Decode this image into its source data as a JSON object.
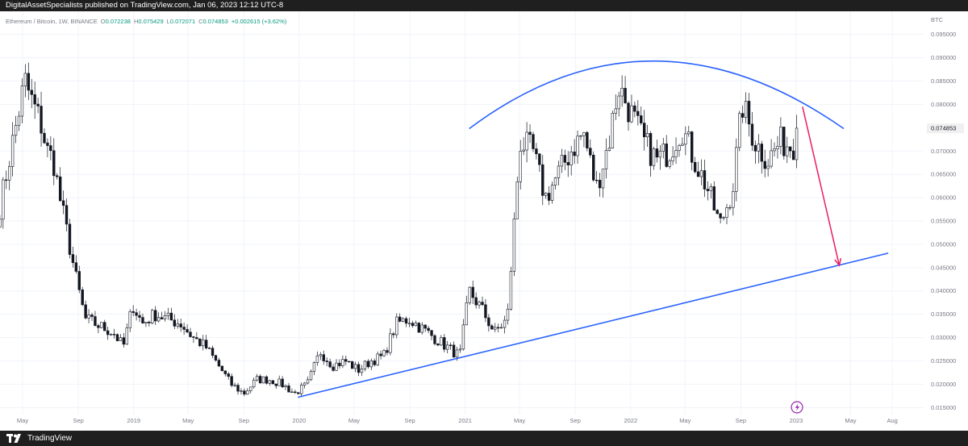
{
  "publish_line": "DigitalAssetSpecialists published on TradingView.com, Jan 06, 2023 12:12 UTC-8",
  "brand": "TradingView",
  "legend": {
    "symbol": "Ethereum / Bitcoin, 1W, BINANCE",
    "o_label": "O",
    "o_value": "0.072238",
    "h_label": "H",
    "h_value": "0.075429",
    "l_label": "L",
    "l_value": "0.072071",
    "c_label": "C",
    "c_value": "0.074853",
    "change": "+0.002615 (+3.62%)"
  },
  "colors": {
    "candle": "#131722",
    "trendline": "#2962ff",
    "arrow": "#e91e63",
    "grid": "#f0f3fa",
    "axis_text": "#787b86",
    "price_label_bg": "#f0f0f0"
  },
  "chart_data": {
    "type": "candlestick",
    "currency_label": "BTC",
    "last_price": "0.074853",
    "ylim": [
      0.0135,
      0.0965
    ],
    "y_ticks": [
      "0.095000",
      "0.090000",
      "0.085000",
      "0.080000",
      "0.070000",
      "0.065000",
      "0.060000",
      "0.055000",
      "0.050000",
      "0.045000",
      "0.040000",
      "0.035000",
      "0.030000",
      "0.025000",
      "0.020000",
      "0.015000"
    ],
    "x_ticks": [
      {
        "label": "May",
        "date": "2018-05-01"
      },
      {
        "label": "Sep",
        "date": "2018-09-01"
      },
      {
        "label": "2019",
        "date": "2019-01-01"
      },
      {
        "label": "May",
        "date": "2019-05-01"
      },
      {
        "label": "Sep",
        "date": "2019-09-01"
      },
      {
        "label": "2020",
        "date": "2020-01-01"
      },
      {
        "label": "May",
        "date": "2020-05-01"
      },
      {
        "label": "Sep",
        "date": "2020-09-01"
      },
      {
        "label": "2021",
        "date": "2021-01-01"
      },
      {
        "label": "May",
        "date": "2021-05-01"
      },
      {
        "label": "Sep",
        "date": "2021-09-01"
      },
      {
        "label": "2022",
        "date": "2022-01-01"
      },
      {
        "label": "May",
        "date": "2022-05-01"
      },
      {
        "label": "Sep",
        "date": "2022-09-01"
      },
      {
        "label": "2023",
        "date": "2023-01-01"
      },
      {
        "label": "May",
        "date": "2023-05-01"
      },
      {
        "label": "Aug",
        "date": "2023-08-01"
      }
    ],
    "price_path": [
      [
        "2018-03-12",
        0.058
      ],
      [
        "2018-04-01",
        0.068
      ],
      [
        "2018-05-06",
        0.085
      ],
      [
        "2018-05-20",
        0.081
      ],
      [
        "2018-06-10",
        0.076
      ],
      [
        "2018-06-24",
        0.07
      ],
      [
        "2018-07-08",
        0.068
      ],
      [
        "2018-07-22",
        0.06
      ],
      [
        "2018-08-12",
        0.05
      ],
      [
        "2018-08-26",
        0.043
      ],
      [
        "2018-09-16",
        0.034
      ],
      [
        "2018-10-07",
        0.033
      ],
      [
        "2018-10-28",
        0.032
      ],
      [
        "2018-11-18",
        0.031
      ],
      [
        "2018-12-09",
        0.028
      ],
      [
        "2018-12-30",
        0.037
      ],
      [
        "2019-01-20",
        0.033
      ],
      [
        "2019-02-17",
        0.035
      ],
      [
        "2019-03-17",
        0.034
      ],
      [
        "2019-04-14",
        0.033
      ],
      [
        "2019-05-12",
        0.03
      ],
      [
        "2019-06-09",
        0.028
      ],
      [
        "2019-07-07",
        0.024
      ],
      [
        "2019-08-04",
        0.02
      ],
      [
        "2019-09-01",
        0.018
      ],
      [
        "2019-09-29",
        0.021
      ],
      [
        "2019-10-27",
        0.021
      ],
      [
        "2019-11-24",
        0.02
      ],
      [
        "2019-12-22",
        0.018
      ],
      [
        "2020-01-19",
        0.02
      ],
      [
        "2020-02-16",
        0.027
      ],
      [
        "2020-03-15",
        0.024
      ],
      [
        "2020-04-12",
        0.025
      ],
      [
        "2020-05-10",
        0.023
      ],
      [
        "2020-06-07",
        0.025
      ],
      [
        "2020-07-05",
        0.026
      ],
      [
        "2020-08-02",
        0.033
      ],
      [
        "2020-08-30",
        0.034
      ],
      [
        "2020-09-27",
        0.032
      ],
      [
        "2020-10-25",
        0.03
      ],
      [
        "2020-11-22",
        0.028
      ],
      [
        "2020-12-20",
        0.026
      ],
      [
        "2021-01-10",
        0.04
      ],
      [
        "2021-02-07",
        0.036
      ],
      [
        "2021-03-07",
        0.031
      ],
      [
        "2021-04-04",
        0.034
      ],
      [
        "2021-05-02",
        0.072
      ],
      [
        "2021-05-30",
        0.07
      ],
      [
        "2021-06-27",
        0.06
      ],
      [
        "2021-07-25",
        0.065
      ],
      [
        "2021-08-22",
        0.07
      ],
      [
        "2021-09-19",
        0.074
      ],
      [
        "2021-10-17",
        0.062
      ],
      [
        "2021-11-14",
        0.072
      ],
      [
        "2021-12-05",
        0.084
      ],
      [
        "2022-01-02",
        0.078
      ],
      [
        "2022-01-30",
        0.072
      ],
      [
        "2022-02-27",
        0.068
      ],
      [
        "2022-03-27",
        0.07
      ],
      [
        "2022-04-24",
        0.075
      ],
      [
        "2022-05-22",
        0.068
      ],
      [
        "2022-06-19",
        0.062
      ],
      [
        "2022-07-17",
        0.054
      ],
      [
        "2022-08-14",
        0.062
      ],
      [
        "2022-09-04",
        0.08
      ],
      [
        "2022-10-02",
        0.072
      ],
      [
        "2022-10-30",
        0.068
      ],
      [
        "2022-11-27",
        0.072
      ],
      [
        "2022-12-25",
        0.071
      ],
      [
        "2023-01-06",
        0.0749
      ]
    ],
    "annotations": {
      "support_line": [
        [
          "2019-12-29",
          0.0172
        ],
        [
          "2023-07-23",
          0.0481
        ]
      ],
      "resistance_arc": [
        [
          "2021-01-10",
          0.0748
        ],
        [
          "2022-02-20",
          0.0893
        ],
        [
          "2023-04-16",
          0.0748
        ]
      ],
      "arrow": [
        [
          "2023-01-15",
          0.0795
        ],
        [
          "2023-04-06",
          0.0455
        ]
      ]
    }
  }
}
